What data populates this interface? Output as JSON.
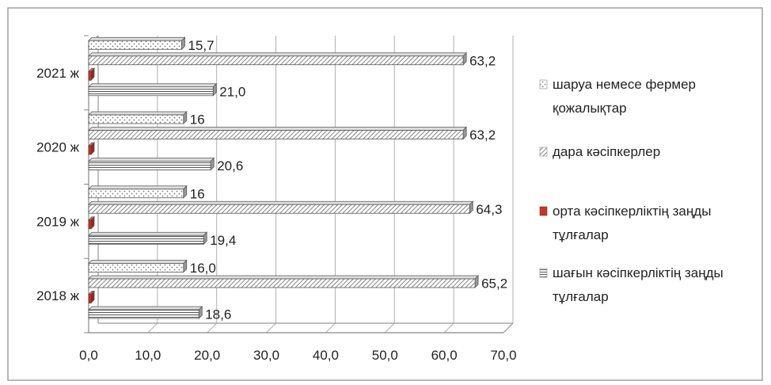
{
  "chart_data": {
    "type": "bar",
    "orientation": "horizontal",
    "categories": [
      "2018 ж",
      "2019 ж",
      "2020 ж",
      "2021 ж"
    ],
    "series": [
      {
        "name": "шағын кәсіпкерліктің заңды тұлғалар",
        "legend_lines": [
          "шағын кәсіпкерліктің заңды",
          "тұлғалар"
        ],
        "values": [
          18.6,
          19.4,
          20.6,
          21.0
        ],
        "labels": [
          "18,6",
          "19,4",
          "20,6",
          "21,0"
        ],
        "color": "#ffffff"
      },
      {
        "name": "орта кәсіпкерліктің заңды тұлғалар",
        "legend_lines": [
          "орта кәсіпкерліктің заңды",
          "тұлғалар"
        ],
        "values": [
          0.4,
          0.4,
          0.4,
          0.4
        ],
        "labels": [
          "",
          "",
          "",
          ""
        ],
        "color": "#c0392b"
      },
      {
        "name": "дара кәсіпкерлер",
        "legend_lines": [
          "дара кәсіпкерлер"
        ],
        "values": [
          65.2,
          64.3,
          63.2,
          63.2
        ],
        "labels": [
          "65,2",
          "64,3",
          "63,2",
          "63,2"
        ],
        "color": "#bbbbbb"
      },
      {
        "name": "шаруа немесе фермер қожалықтар",
        "legend_lines": [
          "шаруа немесе фермер",
          "қожалықтар"
        ],
        "values": [
          16.0,
          16.0,
          16.0,
          15.7
        ],
        "labels": [
          "16,0",
          "16",
          "16",
          "15,7"
        ],
        "color": "#eeeeee"
      }
    ],
    "xlim": [
      0,
      70
    ],
    "xticks": [
      "0,0",
      "10,0",
      "20,0",
      "30,0",
      "40,0",
      "50,0",
      "60,0",
      "70,0"
    ],
    "grid": true,
    "legend": "right"
  }
}
